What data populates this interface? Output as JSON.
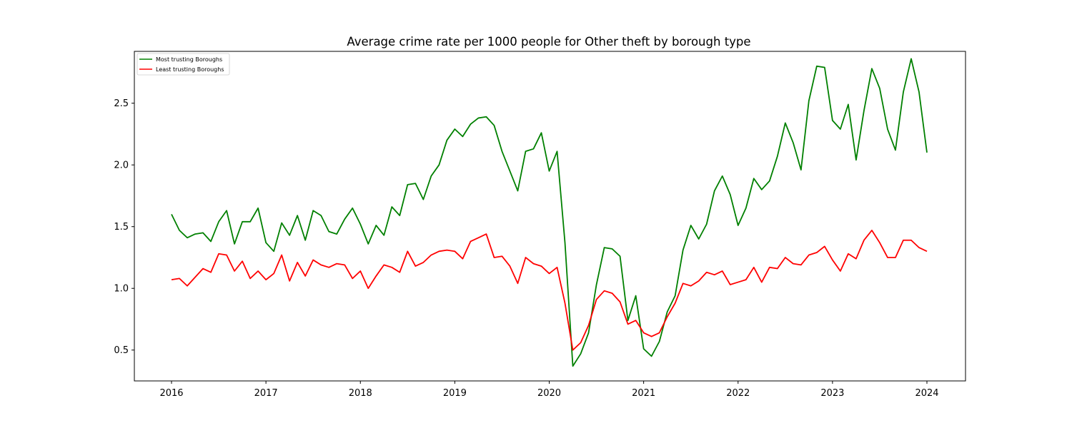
{
  "chart_data": {
    "type": "line",
    "title": "Average crime rate per 1000 people for Other theft by borough type",
    "xlabel": "",
    "ylabel": "",
    "x_start": "2016-01",
    "x_end": "2024-01",
    "x_ticks": [
      "2016",
      "2017",
      "2018",
      "2019",
      "2020",
      "2021",
      "2022",
      "2023",
      "2024"
    ],
    "y_ticks": [
      "0.5",
      "1.0",
      "1.5",
      "2.0",
      "2.5"
    ],
    "ylim": [
      0.25,
      2.92
    ],
    "grid": false,
    "legend_position": "upper-left",
    "series": [
      {
        "name": "Most trusting Boroughs",
        "color": "#008000",
        "values": [
          1.6,
          1.47,
          1.41,
          1.44,
          1.45,
          1.38,
          1.54,
          1.63,
          1.36,
          1.54,
          1.54,
          1.65,
          1.37,
          1.3,
          1.53,
          1.43,
          1.59,
          1.39,
          1.63,
          1.59,
          1.46,
          1.44,
          1.56,
          1.65,
          1.52,
          1.36,
          1.51,
          1.43,
          1.66,
          1.59,
          1.84,
          1.85,
          1.72,
          1.91,
          2.0,
          2.2,
          2.29,
          2.23,
          2.33,
          2.38,
          2.39,
          2.32,
          2.11,
          1.95,
          1.79,
          2.11,
          2.13,
          2.26,
          1.95,
          2.11,
          1.37,
          0.37,
          0.47,
          0.64,
          1.03,
          1.33,
          1.32,
          1.26,
          0.74,
          0.94,
          0.51,
          0.45,
          0.57,
          0.81,
          0.94,
          1.31,
          1.51,
          1.4,
          1.52,
          1.79,
          1.91,
          1.76,
          1.51,
          1.65,
          1.89,
          1.8,
          1.87,
          2.07,
          2.34,
          2.18,
          1.96,
          2.52,
          2.8,
          2.79,
          2.36,
          2.29,
          2.49,
          2.04,
          2.44,
          2.78,
          2.62,
          2.29,
          2.12,
          2.59,
          2.86,
          2.59,
          2.1
        ]
      },
      {
        "name": "Least trusting Boroughs",
        "color": "#ff0000",
        "values": [
          1.07,
          1.08,
          1.02,
          1.09,
          1.16,
          1.13,
          1.28,
          1.27,
          1.14,
          1.22,
          1.08,
          1.14,
          1.07,
          1.12,
          1.27,
          1.06,
          1.21,
          1.1,
          1.23,
          1.19,
          1.17,
          1.2,
          1.19,
          1.08,
          1.14,
          1.0,
          1.1,
          1.19,
          1.17,
          1.13,
          1.3,
          1.18,
          1.21,
          1.27,
          1.3,
          1.31,
          1.3,
          1.24,
          1.38,
          1.41,
          1.44,
          1.25,
          1.26,
          1.18,
          1.04,
          1.25,
          1.2,
          1.18,
          1.12,
          1.17,
          0.88,
          0.5,
          0.56,
          0.7,
          0.91,
          0.98,
          0.96,
          0.89,
          0.71,
          0.74,
          0.64,
          0.61,
          0.64,
          0.77,
          0.88,
          1.04,
          1.02,
          1.06,
          1.13,
          1.11,
          1.14,
          1.03,
          1.05,
          1.07,
          1.17,
          1.05,
          1.17,
          1.16,
          1.25,
          1.2,
          1.19,
          1.27,
          1.29,
          1.34,
          1.23,
          1.14,
          1.28,
          1.24,
          1.39,
          1.47,
          1.37,
          1.25,
          1.25,
          1.39,
          1.39,
          1.33,
          1.3
        ]
      }
    ]
  }
}
